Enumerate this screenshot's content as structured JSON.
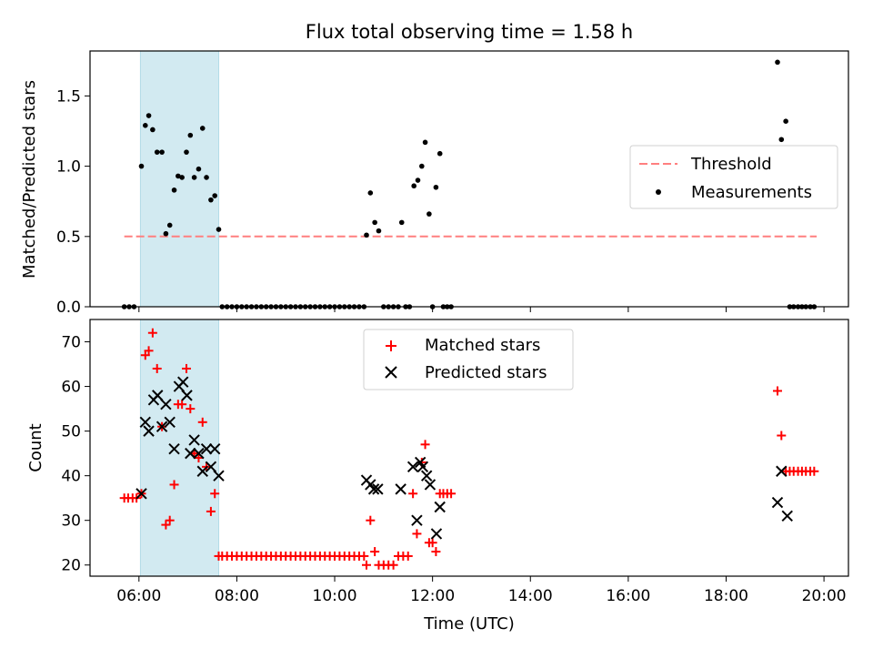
{
  "chart_data": {
    "type": "scatter",
    "title": "Flux total observing time = 1.58 h",
    "x_axis": {
      "label": "Time (UTC)",
      "ticks": [
        "06:00",
        "08:00",
        "10:00",
        "12:00",
        "14:00",
        "16:00",
        "18:00",
        "20:00"
      ],
      "range_hours": [
        5.0,
        20.5
      ]
    },
    "highlight_span_hours": [
      6.03,
      7.63
    ],
    "colors": {
      "highlight": "#add8e6",
      "threshold": "#ff7f7f",
      "matched": "#ff0000",
      "predicted": "#000000",
      "measurements": "#000000"
    },
    "panels": [
      {
        "ylabel": "Matched/Predicted stars",
        "ylim": [
          0,
          1.82
        ],
        "yticks": [
          "0.0",
          "0.5",
          "1.0",
          "1.5"
        ],
        "legend": {
          "position": "center-right",
          "entries": [
            "Threshold",
            "Measurements"
          ]
        },
        "threshold": {
          "name": "Threshold",
          "value": 0.5,
          "x_range_hours": [
            5.7,
            19.85
          ],
          "style": "dashed"
        },
        "measurements": {
          "name": "Measurements",
          "points": [
            [
              5.7,
              0
            ],
            [
              5.8,
              0
            ],
            [
              5.9,
              0
            ],
            [
              6.05,
              1.0
            ],
            [
              6.13,
              1.29
            ],
            [
              6.2,
              1.36
            ],
            [
              6.28,
              1.26
            ],
            [
              6.37,
              1.1
            ],
            [
              6.47,
              1.1
            ],
            [
              6.55,
              0.52
            ],
            [
              6.63,
              0.58
            ],
            [
              6.72,
              0.83
            ],
            [
              6.8,
              0.93
            ],
            [
              6.88,
              0.92
            ],
            [
              6.97,
              1.1
            ],
            [
              7.05,
              1.22
            ],
            [
              7.13,
              0.92
            ],
            [
              7.22,
              0.98
            ],
            [
              7.3,
              1.27
            ],
            [
              7.38,
              0.92
            ],
            [
              7.47,
              0.76
            ],
            [
              7.55,
              0.79
            ],
            [
              7.63,
              0.55
            ],
            [
              7.7,
              0
            ],
            [
              7.8,
              0
            ],
            [
              7.9,
              0
            ],
            [
              8.0,
              0
            ],
            [
              8.1,
              0
            ],
            [
              8.2,
              0
            ],
            [
              8.3,
              0
            ],
            [
              8.4,
              0
            ],
            [
              8.5,
              0
            ],
            [
              8.6,
              0
            ],
            [
              8.7,
              0
            ],
            [
              8.8,
              0
            ],
            [
              8.9,
              0
            ],
            [
              9.0,
              0
            ],
            [
              9.1,
              0
            ],
            [
              9.2,
              0
            ],
            [
              9.3,
              0
            ],
            [
              9.4,
              0
            ],
            [
              9.5,
              0
            ],
            [
              9.6,
              0
            ],
            [
              9.7,
              0
            ],
            [
              9.8,
              0
            ],
            [
              9.9,
              0
            ],
            [
              10.0,
              0
            ],
            [
              10.1,
              0
            ],
            [
              10.2,
              0
            ],
            [
              10.3,
              0
            ],
            [
              10.4,
              0
            ],
            [
              10.5,
              0
            ],
            [
              10.6,
              0
            ],
            [
              10.65,
              0.51
            ],
            [
              10.73,
              0.81
            ],
            [
              10.82,
              0.6
            ],
            [
              10.9,
              0.54
            ],
            [
              11.0,
              0
            ],
            [
              11.1,
              0
            ],
            [
              11.2,
              0
            ],
            [
              11.3,
              0
            ],
            [
              11.37,
              0.6
            ],
            [
              11.45,
              0
            ],
            [
              11.53,
              0
            ],
            [
              11.62,
              0.86
            ],
            [
              11.7,
              0.9
            ],
            [
              11.78,
              1.0
            ],
            [
              11.85,
              1.17
            ],
            [
              11.93,
              0.66
            ],
            [
              12.0,
              0
            ],
            [
              12.07,
              0.85
            ],
            [
              12.15,
              1.09
            ],
            [
              12.22,
              0
            ],
            [
              12.3,
              0
            ],
            [
              12.38,
              0
            ],
            [
              19.05,
              1.74
            ],
            [
              19.13,
              1.19
            ],
            [
              19.22,
              1.32
            ],
            [
              19.3,
              0
            ],
            [
              19.38,
              0
            ],
            [
              19.47,
              0
            ],
            [
              19.55,
              0
            ],
            [
              19.63,
              0
            ],
            [
              19.72,
              0
            ],
            [
              19.8,
              0
            ]
          ]
        }
      },
      {
        "ylabel": "Count",
        "ylim": [
          17.5,
          75
        ],
        "yticks": [
          "20",
          "30",
          "40",
          "50",
          "60",
          "70"
        ],
        "legend": {
          "position": "top-center",
          "entries": [
            "Matched stars",
            "Predicted stars"
          ]
        },
        "series": [
          {
            "name": "Matched stars",
            "marker": "plus",
            "points": [
              [
                5.7,
                35
              ],
              [
                5.78,
                35
              ],
              [
                5.87,
                35
              ],
              [
                5.95,
                35
              ],
              [
                6.05,
                36
              ],
              [
                6.13,
                67
              ],
              [
                6.2,
                68
              ],
              [
                6.28,
                72
              ],
              [
                6.37,
                64
              ],
              [
                6.47,
                51
              ],
              [
                6.55,
                29
              ],
              [
                6.63,
                30
              ],
              [
                6.72,
                38
              ],
              [
                6.8,
                56
              ],
              [
                6.88,
                56
              ],
              [
                6.97,
                64
              ],
              [
                7.05,
                55
              ],
              [
                7.13,
                45
              ],
              [
                7.22,
                44
              ],
              [
                7.3,
                52
              ],
              [
                7.38,
                42
              ],
              [
                7.47,
                32
              ],
              [
                7.55,
                36
              ],
              [
                7.63,
                22
              ],
              [
                7.7,
                22
              ],
              [
                7.8,
                22
              ],
              [
                7.9,
                22
              ],
              [
                8.0,
                22
              ],
              [
                8.1,
                22
              ],
              [
                8.2,
                22
              ],
              [
                8.3,
                22
              ],
              [
                8.4,
                22
              ],
              [
                8.5,
                22
              ],
              [
                8.6,
                22
              ],
              [
                8.7,
                22
              ],
              [
                8.8,
                22
              ],
              [
                8.9,
                22
              ],
              [
                9.0,
                22
              ],
              [
                9.1,
                22
              ],
              [
                9.2,
                22
              ],
              [
                9.3,
                22
              ],
              [
                9.4,
                22
              ],
              [
                9.5,
                22
              ],
              [
                9.6,
                22
              ],
              [
                9.7,
                22
              ],
              [
                9.8,
                22
              ],
              [
                9.9,
                22
              ],
              [
                10.0,
                22
              ],
              [
                10.1,
                22
              ],
              [
                10.2,
                22
              ],
              [
                10.3,
                22
              ],
              [
                10.4,
                22
              ],
              [
                10.5,
                22
              ],
              [
                10.6,
                22
              ],
              [
                10.65,
                20
              ],
              [
                10.73,
                30
              ],
              [
                10.82,
                23
              ],
              [
                10.9,
                20
              ],
              [
                11.0,
                20
              ],
              [
                11.1,
                20
              ],
              [
                11.2,
                20
              ],
              [
                11.3,
                22
              ],
              [
                11.4,
                22
              ],
              [
                11.5,
                22
              ],
              [
                11.6,
                36
              ],
              [
                11.68,
                27
              ],
              [
                11.78,
                43
              ],
              [
                11.85,
                47
              ],
              [
                11.93,
                25
              ],
              [
                12.0,
                25
              ],
              [
                12.07,
                23
              ],
              [
                12.15,
                36
              ],
              [
                12.22,
                36
              ],
              [
                12.3,
                36
              ],
              [
                12.38,
                36
              ],
              [
                19.05,
                59
              ],
              [
                19.13,
                49
              ],
              [
                19.22,
                41
              ],
              [
                19.3,
                41
              ],
              [
                19.38,
                41
              ],
              [
                19.47,
                41
              ],
              [
                19.55,
                41
              ],
              [
                19.63,
                41
              ],
              [
                19.72,
                41
              ],
              [
                19.8,
                41
              ]
            ]
          },
          {
            "name": "Predicted stars",
            "marker": "x",
            "points": [
              [
                6.05,
                36
              ],
              [
                6.13,
                52
              ],
              [
                6.2,
                50
              ],
              [
                6.3,
                57
              ],
              [
                6.38,
                58
              ],
              [
                6.47,
                51
              ],
              [
                6.55,
                56
              ],
              [
                6.63,
                52
              ],
              [
                6.72,
                46
              ],
              [
                6.82,
                60
              ],
              [
                6.9,
                61
              ],
              [
                6.98,
                58
              ],
              [
                7.05,
                45
              ],
              [
                7.13,
                48
              ],
              [
                7.22,
                45
              ],
              [
                7.3,
                41
              ],
              [
                7.38,
                46
              ],
              [
                7.47,
                42
              ],
              [
                7.55,
                46
              ],
              [
                7.63,
                40
              ],
              [
                10.65,
                39
              ],
              [
                10.73,
                38
              ],
              [
                10.8,
                37
              ],
              [
                10.88,
                37
              ],
              [
                11.35,
                37
              ],
              [
                11.6,
                42
              ],
              [
                11.68,
                30
              ],
              [
                11.75,
                43
              ],
              [
                11.8,
                42
              ],
              [
                11.88,
                40
              ],
              [
                11.95,
                38
              ],
              [
                12.08,
                27
              ],
              [
                12.15,
                33
              ],
              [
                19.05,
                34
              ],
              [
                19.13,
                41
              ],
              [
                19.25,
                31
              ]
            ]
          }
        ]
      }
    ]
  }
}
